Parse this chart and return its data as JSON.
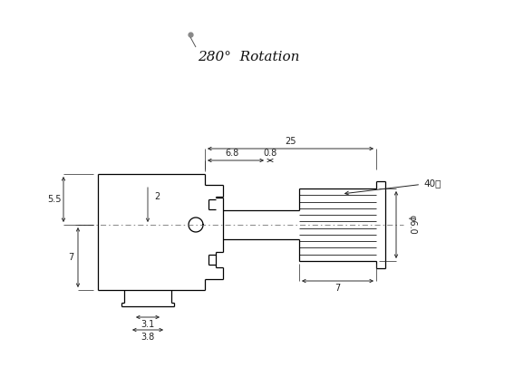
{
  "bg_color": "#ffffff",
  "line_color": "#000000",
  "dim_color": "#222222",
  "title_text": "280°  Rotation",
  "fig_width": 5.67,
  "fig_height": 4.16,
  "dpi": 100
}
